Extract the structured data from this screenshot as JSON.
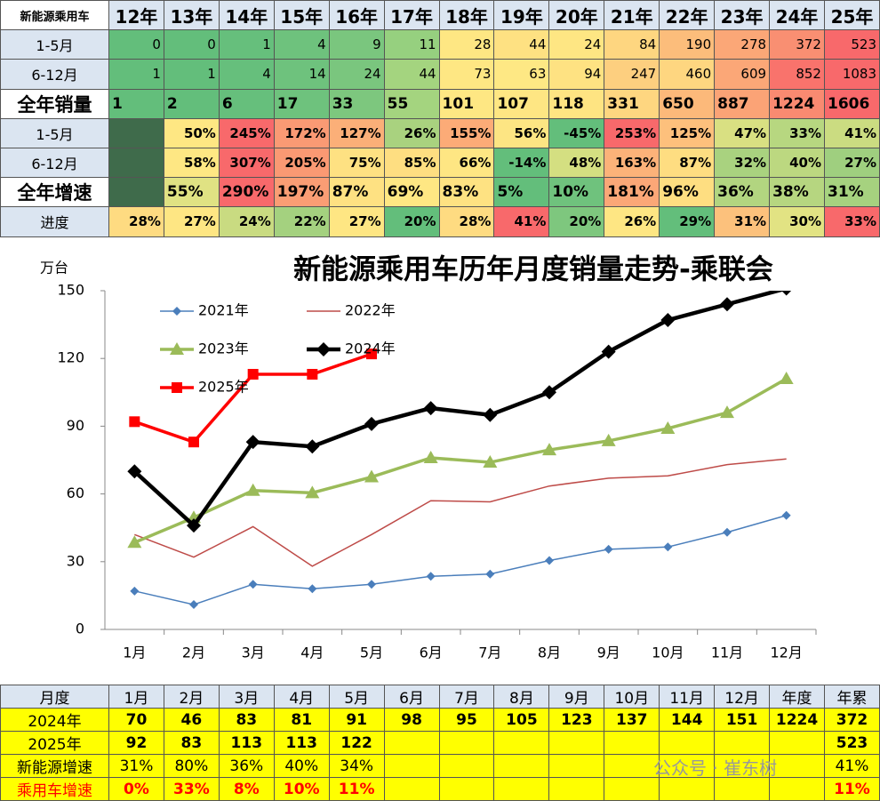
{
  "top_table": {
    "corner": "新能源乘用车",
    "columns": [
      "12年",
      "13年",
      "14年",
      "15年",
      "16年",
      "17年",
      "18年",
      "19年",
      "20年",
      "21年",
      "22年",
      "23年",
      "24年",
      "25年"
    ],
    "rows": [
      {
        "label": "1-5月",
        "emphasis": false,
        "align": "right",
        "values": [
          "0",
          "0",
          "1",
          "4",
          "9",
          "11",
          "28",
          "44",
          "24",
          "84",
          "190",
          "278",
          "372",
          "523"
        ],
        "colors": [
          "#63be7b",
          "#63be7b",
          "#66bf7c",
          "#6ec27d",
          "#7ac67e",
          "#96d07f",
          "#fee783",
          "#fee182",
          "#fee683",
          "#fed680",
          "#fcbd7b",
          "#fba777",
          "#f98f72",
          "#f8696b"
        ]
      },
      {
        "label": "6-12月",
        "emphasis": false,
        "align": "right",
        "values": [
          "1",
          "1",
          "4",
          "14",
          "24",
          "44",
          "73",
          "63",
          "94",
          "247",
          "460",
          "609",
          "852",
          "1083"
        ],
        "colors": [
          "#63be7b",
          "#63be7b",
          "#66bf7c",
          "#6ec27d",
          "#7ac67e",
          "#a4d47f",
          "#fee783",
          "#fee884",
          "#fee282",
          "#fdcf7f",
          "#fed680",
          "#fba777",
          "#f9736c",
          "#f8696b"
        ]
      },
      {
        "label": "全年销量",
        "emphasis": true,
        "align": "left",
        "values": [
          "1",
          "2",
          "6",
          "17",
          "33",
          "55",
          "101",
          "107",
          "118",
          "331",
          "650",
          "887",
          "1224",
          "1606"
        ],
        "colors": [
          "#63be7b",
          "#63be7b",
          "#66bf7c",
          "#6ec27d",
          "#7dc77e",
          "#a4d47f",
          "#fee783",
          "#fee683",
          "#fee482",
          "#fed680",
          "#fcb97a",
          "#fba376",
          "#f98a71",
          "#f8696b"
        ]
      },
      {
        "label": "1-5月",
        "emphasis": false,
        "align": "right",
        "values": [
          null,
          "50%",
          "245%",
          "172%",
          "127%",
          "26%",
          "155%",
          "56%",
          "-45%",
          "253%",
          "125%",
          "47%",
          "33%",
          "41%"
        ],
        "colors": [
          "#3f6b4b",
          "#fee783",
          "#f8696b",
          "#fa9a74",
          "#fbaf78",
          "#a9d27f",
          "#fcab77",
          "#fde583",
          "#63be7b",
          "#f8696b",
          "#fdc07c",
          "#d9e082",
          "#b7d780",
          "#cbdc81"
        ]
      },
      {
        "label": "6-12月",
        "emphasis": false,
        "align": "right",
        "values": [
          null,
          "58%",
          "307%",
          "205%",
          "75%",
          "85%",
          "66%",
          "-14%",
          "48%",
          "163%",
          "87%",
          "32%",
          "40%",
          "27%"
        ],
        "colors": [
          "#3f6b4b",
          "#fee783",
          "#f8696b",
          "#fa9973",
          "#fee182",
          "#fede81",
          "#fee683",
          "#63be7b",
          "#d4df81",
          "#fcb279",
          "#fedd81",
          "#a9d27f",
          "#bcd880",
          "#9fcf7f"
        ]
      },
      {
        "label": "全年增速",
        "emphasis": true,
        "align": "left",
        "values": [
          null,
          "55%",
          "290%",
          "197%",
          "87%",
          "69%",
          "83%",
          "5%",
          "10%",
          "181%",
          "96%",
          "36%",
          "38%",
          "31%"
        ],
        "colors": [
          "#3f6b4b",
          "#e0e283",
          "#f8696b",
          "#fa9d74",
          "#fee182",
          "#fee783",
          "#fee282",
          "#63be7b",
          "#6fc27d",
          "#fba777",
          "#fede81",
          "#b2d580",
          "#b6d680",
          "#a6d27f"
        ]
      },
      {
        "label": "进度",
        "emphasis": false,
        "align": "right",
        "values": [
          "28%",
          "27%",
          "24%",
          "22%",
          "27%",
          "20%",
          "28%",
          "41%",
          "20%",
          "26%",
          "29%",
          "31%",
          "30%",
          "33%"
        ],
        "colors": [
          "#fedb81",
          "#fee683",
          "#c9db81",
          "#a4d17f",
          "#fee683",
          "#63be7b",
          "#fedb81",
          "#f8696b",
          "#7ec77e",
          "#fee683",
          "#63be7b",
          "#fcc17c",
          "#e2e383",
          "#f8696b"
        ]
      }
    ]
  },
  "chart_data": {
    "type": "line",
    "title": "新能源乘用车历年月度销量走势-乘联会",
    "y_label": "万台",
    "categories": [
      "1月",
      "2月",
      "3月",
      "4月",
      "5月",
      "6月",
      "7月",
      "8月",
      "9月",
      "10月",
      "11月",
      "12月"
    ],
    "ylim": [
      0,
      150
    ],
    "yticks": [
      0,
      30,
      60,
      90,
      120,
      150
    ],
    "series": [
      {
        "name": "2021年",
        "color": "#4a7ebb",
        "marker": "diamond",
        "width": 1.5,
        "values": [
          17,
          11,
          20,
          18,
          20,
          23.5,
          24.5,
          30.5,
          35.5,
          36.5,
          43,
          50.5
        ]
      },
      {
        "name": "2022年",
        "color": "#be4b48",
        "marker": "none",
        "width": 1.5,
        "values": [
          42,
          32,
          45.5,
          28,
          42,
          57,
          56.5,
          63.5,
          67,
          68,
          73,
          75.5
        ]
      },
      {
        "name": "2023年",
        "color": "#9bbb59",
        "marker": "triangle",
        "width": 3.5,
        "values": [
          38.5,
          49.5,
          61.5,
          60.5,
          67.5,
          76,
          74,
          79.5,
          83.5,
          89,
          96,
          111
        ]
      },
      {
        "name": "2024年",
        "color": "#000000",
        "marker": "bigdiamond",
        "width": 4.5,
        "values": [
          70,
          46,
          83,
          81,
          91,
          98,
          95,
          105,
          123,
          137,
          144,
          151
        ]
      },
      {
        "name": "2025年",
        "color": "#ff0000",
        "marker": "square",
        "width": 3.5,
        "values": [
          92,
          83,
          113,
          113,
          122,
          null,
          null,
          null,
          null,
          null,
          null,
          null
        ]
      }
    ]
  },
  "bottom_table": {
    "header": [
      "月度",
      "1月",
      "2月",
      "3月",
      "4月",
      "5月",
      "6月",
      "7月",
      "8月",
      "9月",
      "10月",
      "11月",
      "12月",
      "年度",
      "年累"
    ],
    "rows": [
      {
        "label": "2024年",
        "bold": true,
        "text_color": "#000000",
        "values": [
          "70",
          "46",
          "83",
          "81",
          "91",
          "98",
          "95",
          "105",
          "123",
          "137",
          "144",
          "151",
          "1224",
          "372"
        ]
      },
      {
        "label": "2025年",
        "bold": true,
        "text_color": "#000000",
        "values": [
          "92",
          "83",
          "113",
          "113",
          "122",
          null,
          null,
          null,
          null,
          null,
          null,
          null,
          null,
          "523"
        ]
      },
      {
        "label": "新能源增速",
        "bold": false,
        "text_color": "#000000",
        "values": [
          "31%",
          "80%",
          "36%",
          "40%",
          "34%",
          null,
          null,
          null,
          null,
          null,
          null,
          null,
          null,
          "41%"
        ]
      },
      {
        "label": "乘用车增速",
        "bold": true,
        "text_color": "#ff0000",
        "values": [
          "0%",
          "33%",
          "8%",
          "10%",
          "11%",
          null,
          null,
          null,
          null,
          null,
          null,
          null,
          null,
          "11%"
        ]
      }
    ]
  },
  "watermark": "公众号 · 崔东树"
}
